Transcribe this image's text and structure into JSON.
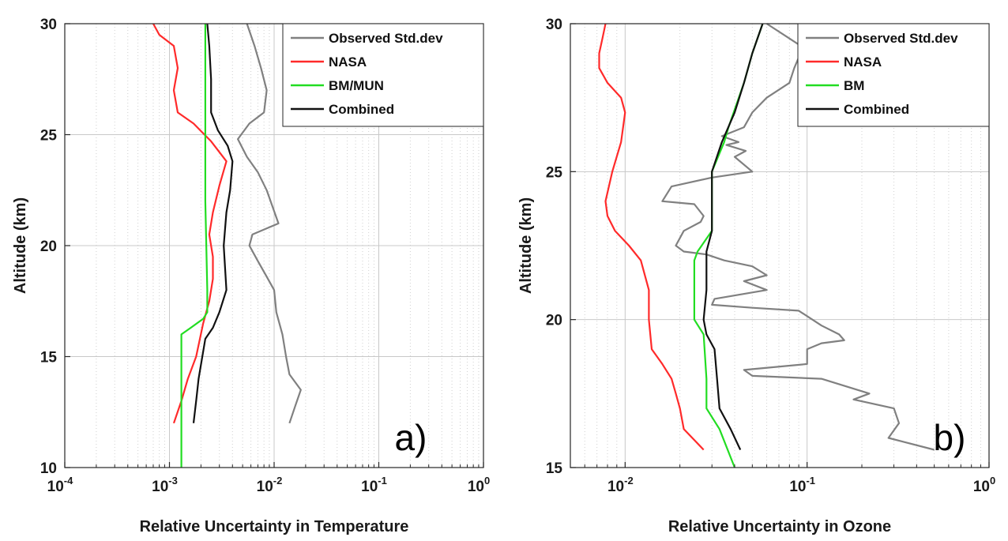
{
  "chart_data": [
    {
      "type": "line",
      "panel_label": "a)",
      "xlabel": "Relative Uncertainty in Temperature",
      "ylabel": "Altitude (km)",
      "xscale": "log",
      "xlim": [
        0.0001,
        1
      ],
      "ylim": [
        10,
        30
      ],
      "x_ticks": [
        {
          "base": "10",
          "exp": "-4"
        },
        {
          "base": "10",
          "exp": "-3"
        },
        {
          "base": "10",
          "exp": "-2"
        },
        {
          "base": "10",
          "exp": "-1"
        },
        {
          "base": "10",
          "exp": "0"
        }
      ],
      "y_ticks": [
        "10",
        "15",
        "20",
        "25",
        "30"
      ],
      "grid": true,
      "legend_position": "top-right",
      "series": [
        {
          "name": "Observed Std.dev",
          "color": "#808080",
          "points": [
            [
              0.0055,
              30
            ],
            [
              0.0065,
              29
            ],
            [
              0.0075,
              28
            ],
            [
              0.0085,
              27
            ],
            [
              0.008,
              26
            ],
            [
              0.0058,
              25.5
            ],
            [
              0.0045,
              24.8
            ],
            [
              0.0055,
              24
            ],
            [
              0.007,
              23.3
            ],
            [
              0.0085,
              22.5
            ],
            [
              0.011,
              21
            ],
            [
              0.0062,
              20.5
            ],
            [
              0.0058,
              20
            ],
            [
              0.007,
              19.3
            ],
            [
              0.0085,
              18.6
            ],
            [
              0.01,
              18
            ],
            [
              0.0105,
              17
            ],
            [
              0.012,
              16
            ],
            [
              0.013,
              15
            ],
            [
              0.014,
              14.2
            ],
            [
              0.018,
              13.5
            ],
            [
              0.016,
              12.8
            ],
            [
              0.014,
              12
            ]
          ]
        },
        {
          "name": "NASA",
          "color": "#ff2a2a",
          "points": [
            [
              0.0007,
              30
            ],
            [
              0.0008,
              29.5
            ],
            [
              0.0011,
              29
            ],
            [
              0.0012,
              28
            ],
            [
              0.0011,
              27
            ],
            [
              0.0012,
              26
            ],
            [
              0.0017,
              25.5
            ],
            [
              0.0025,
              24.7
            ],
            [
              0.0035,
              23.8
            ],
            [
              0.003,
              22.7
            ],
            [
              0.0026,
              21.5
            ],
            [
              0.0024,
              20.5
            ],
            [
              0.0026,
              19.5
            ],
            [
              0.0026,
              18.5
            ],
            [
              0.0024,
              17.5
            ],
            [
              0.0021,
              16.5
            ],
            [
              0.0018,
              15
            ],
            [
              0.0015,
              14
            ],
            [
              0.0013,
              13
            ],
            [
              0.0011,
              12
            ]
          ]
        },
        {
          "name": "BM/MUN",
          "color": "#22dd22",
          "points": [
            [
              0.0022,
              30
            ],
            [
              0.0022,
              28
            ],
            [
              0.0022,
              25
            ],
            [
              0.0022,
              22
            ],
            [
              0.0023,
              18
            ],
            [
              0.0023,
              17
            ],
            [
              0.0021,
              16.7
            ],
            [
              0.0016,
              16.3
            ],
            [
              0.0013,
              16
            ],
            [
              0.0013,
              14
            ],
            [
              0.0013,
              12
            ],
            [
              0.0013,
              10
            ]
          ]
        },
        {
          "name": "Combined",
          "color": "#111111",
          "points": [
            [
              0.0023,
              30
            ],
            [
              0.0024,
              29
            ],
            [
              0.0025,
              27.5
            ],
            [
              0.0025,
              26
            ],
            [
              0.0029,
              25.2
            ],
            [
              0.0036,
              24.5
            ],
            [
              0.004,
              23.8
            ],
            [
              0.0038,
              22.5
            ],
            [
              0.0035,
              21.5
            ],
            [
              0.0033,
              20
            ],
            [
              0.0035,
              18
            ],
            [
              0.003,
              17
            ],
            [
              0.0026,
              16.3
            ],
            [
              0.0022,
              15.8
            ],
            [
              0.0019,
              14
            ],
            [
              0.0018,
              13
            ],
            [
              0.0017,
              12
            ]
          ]
        }
      ]
    },
    {
      "type": "line",
      "panel_label": "b)",
      "xlabel": "Relative Uncertainty in Ozone",
      "ylabel": "Altitude (km)",
      "xscale": "log",
      "xlim": [
        0.005,
        1
      ],
      "ylim": [
        15,
        30
      ],
      "x_ticks": [
        {
          "base": "10",
          "exp": "-2"
        },
        {
          "base": "10",
          "exp": "-1"
        },
        {
          "base": "10",
          "exp": "0"
        }
      ],
      "y_ticks": [
        "15",
        "20",
        "25",
        "30"
      ],
      "grid": true,
      "legend_position": "top-right",
      "series": [
        {
          "name": "Observed Std.dev",
          "color": "#808080",
          "points": [
            [
              0.06,
              30
            ],
            [
              0.08,
              29.5
            ],
            [
              0.095,
              29.2
            ],
            [
              0.085,
              28.5
            ],
            [
              0.08,
              28
            ],
            [
              0.06,
              27.5
            ],
            [
              0.05,
              27
            ],
            [
              0.045,
              26.5
            ],
            [
              0.034,
              26.2
            ],
            [
              0.042,
              26
            ],
            [
              0.036,
              25.9
            ],
            [
              0.046,
              25.7
            ],
            [
              0.04,
              25.5
            ],
            [
              0.05,
              25
            ],
            [
              0.03,
              24.8
            ],
            [
              0.018,
              24.5
            ],
            [
              0.016,
              24
            ],
            [
              0.024,
              23.9
            ],
            [
              0.027,
              23.5
            ],
            [
              0.026,
              23.3
            ],
            [
              0.021,
              23
            ],
            [
              0.019,
              22.5
            ],
            [
              0.021,
              22.3
            ],
            [
              0.028,
              22.2
            ],
            [
              0.035,
              22
            ],
            [
              0.05,
              21.8
            ],
            [
              0.06,
              21.5
            ],
            [
              0.045,
              21.3
            ],
            [
              0.06,
              21
            ],
            [
              0.031,
              20.7
            ],
            [
              0.03,
              20.5
            ],
            [
              0.05,
              20.4
            ],
            [
              0.09,
              20.3
            ],
            [
              0.12,
              19.8
            ],
            [
              0.15,
              19.5
            ],
            [
              0.16,
              19.3
            ],
            [
              0.12,
              19.2
            ],
            [
              0.1,
              19
            ],
            [
              0.1,
              18.5
            ],
            [
              0.045,
              18.3
            ],
            [
              0.05,
              18.1
            ],
            [
              0.12,
              18
            ],
            [
              0.22,
              17.5
            ],
            [
              0.18,
              17.3
            ],
            [
              0.3,
              17
            ],
            [
              0.32,
              16.5
            ],
            [
              0.28,
              16
            ],
            [
              0.5,
              15.6
            ]
          ]
        },
        {
          "name": "NASA",
          "color": "#ff2a2a",
          "points": [
            [
              0.0078,
              30
            ],
            [
              0.0075,
              29.5
            ],
            [
              0.0072,
              29
            ],
            [
              0.0072,
              28.5
            ],
            [
              0.008,
              28
            ],
            [
              0.0095,
              27.5
            ],
            [
              0.01,
              27
            ],
            [
              0.0095,
              26
            ],
            [
              0.0085,
              25
            ],
            [
              0.0078,
              24
            ],
            [
              0.008,
              23.5
            ],
            [
              0.0088,
              23
            ],
            [
              0.0105,
              22.5
            ],
            [
              0.0122,
              22
            ],
            [
              0.0135,
              21
            ],
            [
              0.0135,
              20
            ],
            [
              0.014,
              19
            ],
            [
              0.016,
              18.5
            ],
            [
              0.018,
              18
            ],
            [
              0.019,
              17.5
            ],
            [
              0.02,
              17
            ],
            [
              0.021,
              16.3
            ],
            [
              0.027,
              15.6
            ]
          ]
        },
        {
          "name": "BM",
          "color": "#22dd22",
          "points": [
            [
              0.057,
              30
            ],
            [
              0.05,
              29
            ],
            [
              0.045,
              28
            ],
            [
              0.037,
              26.5
            ],
            [
              0.035,
              26
            ],
            [
              0.03,
              25
            ],
            [
              0.03,
              24
            ],
            [
              0.03,
              23
            ],
            [
              0.025,
              22.3
            ],
            [
              0.024,
              22
            ],
            [
              0.024,
              21
            ],
            [
              0.024,
              20
            ],
            [
              0.027,
              19.5
            ],
            [
              0.028,
              18
            ],
            [
              0.028,
              17
            ],
            [
              0.033,
              16.3
            ],
            [
              0.04,
              15
            ]
          ]
        },
        {
          "name": "Combined",
          "color": "#111111",
          "points": [
            [
              0.057,
              30
            ],
            [
              0.05,
              29
            ],
            [
              0.045,
              28
            ],
            [
              0.04,
              27
            ],
            [
              0.034,
              26
            ],
            [
              0.03,
              25
            ],
            [
              0.03,
              24
            ],
            [
              0.03,
              23
            ],
            [
              0.028,
              22.3
            ],
            [
              0.028,
              21
            ],
            [
              0.027,
              20
            ],
            [
              0.028,
              19.5
            ],
            [
              0.031,
              19
            ],
            [
              0.032,
              18
            ],
            [
              0.033,
              17
            ],
            [
              0.038,
              16.3
            ],
            [
              0.043,
              15.6
            ]
          ]
        }
      ]
    }
  ]
}
